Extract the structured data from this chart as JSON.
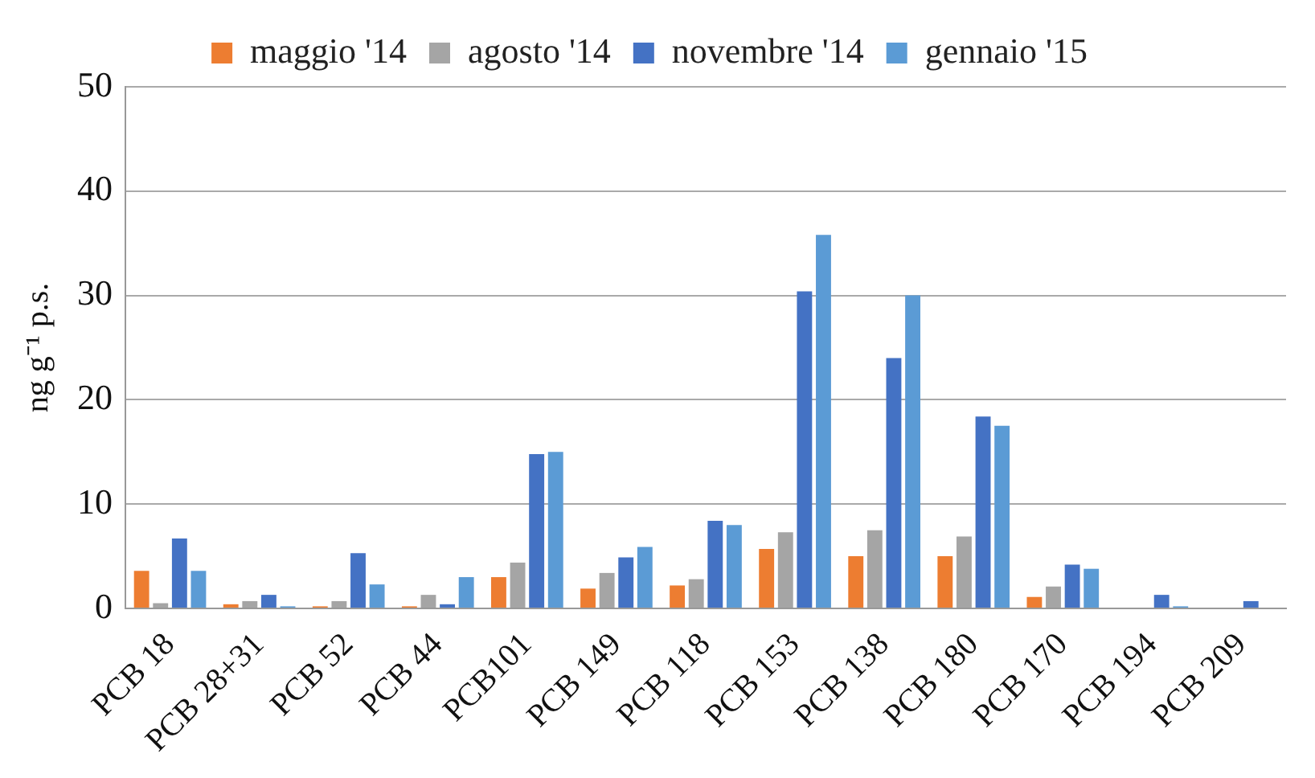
{
  "chart_data": {
    "type": "bar",
    "ylabel": "ng g⁻¹ p.s.",
    "categories": [
      "PCB 18",
      "PCB 28+31",
      "PCB 52",
      "PCB 44",
      "PCB101",
      "PCB 149",
      "PCB 118",
      "PCB 153",
      "PCB 138",
      "PCB 180",
      "PCB 170",
      "PCB 194",
      "PCB 209"
    ],
    "series": [
      {
        "name": "maggio '14",
        "color": "#ed7d31",
        "values": [
          3.6,
          0.4,
          0.2,
          0.2,
          3.0,
          1.9,
          2.2,
          5.7,
          5.0,
          5.0,
          1.1,
          0,
          0
        ]
      },
      {
        "name": "agosto '14",
        "color": "#a5a5a5",
        "values": [
          0.5,
          0.7,
          0.7,
          1.3,
          4.4,
          3.4,
          2.8,
          7.3,
          7.5,
          6.9,
          2.1,
          0,
          0
        ]
      },
      {
        "name": "novembre '14",
        "color": "#4472c4",
        "values": [
          6.7,
          1.3,
          5.3,
          0.4,
          14.8,
          4.9,
          8.4,
          30.4,
          24.0,
          18.4,
          4.2,
          1.3,
          0.7
        ]
      },
      {
        "name": "gennaio '15",
        "color": "#5b9bd5",
        "values": [
          3.6,
          0.2,
          2.3,
          3.0,
          15.0,
          5.9,
          8.0,
          35.8,
          30.0,
          17.5,
          3.8,
          0.2,
          0
        ]
      }
    ],
    "ylim": [
      0,
      50
    ],
    "yticks": [
      0,
      10,
      20,
      30,
      40,
      50
    ],
    "grid": "y",
    "legend": "top"
  }
}
